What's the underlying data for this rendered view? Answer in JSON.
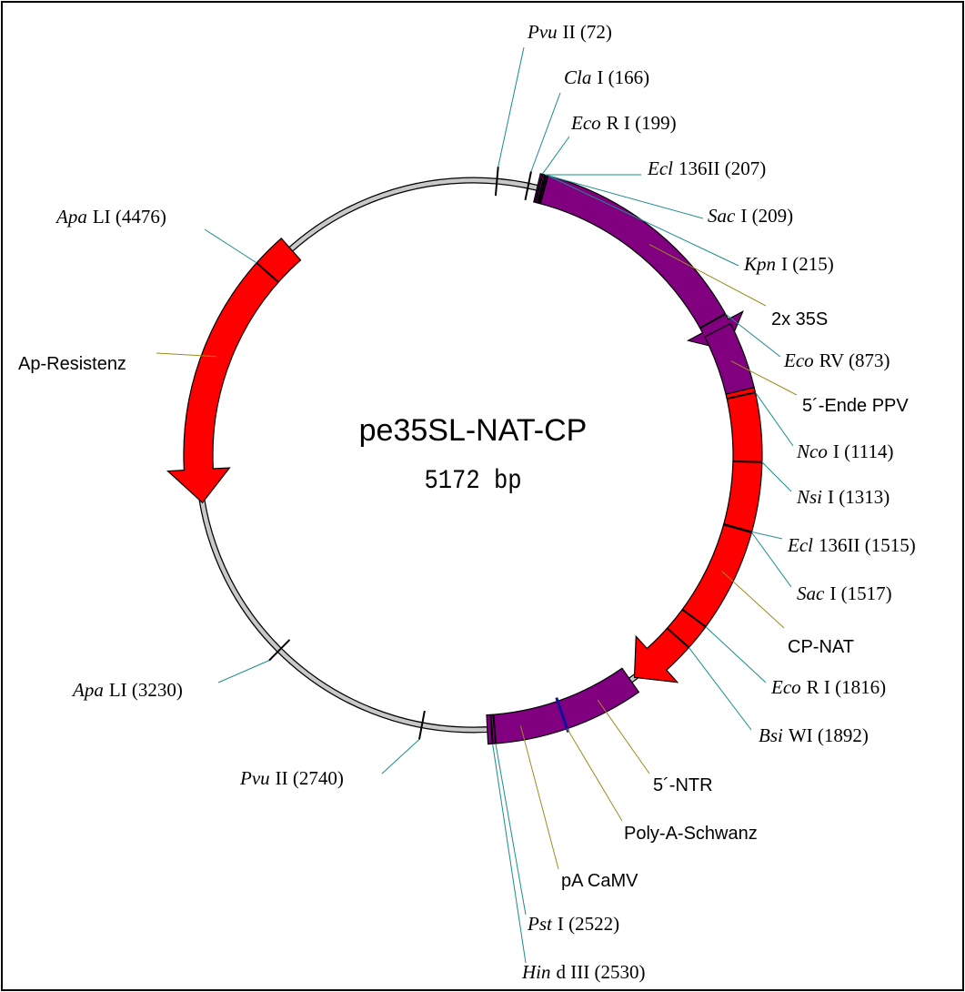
{
  "title": "pe35SL-NAT-CP",
  "size": "5172 bp",
  "sites": [
    {
      "italic": "Pvu",
      "text": "II (72)"
    },
    {
      "italic": "Cla",
      "text": "I (166)"
    },
    {
      "italic": "Eco",
      "text": "R I (199)"
    },
    {
      "italic": "Ecl",
      "text": "136II (207)"
    },
    {
      "italic": "Sac",
      "text": "I (209)"
    },
    {
      "italic": "Kpn",
      "text": "I (215)"
    },
    {
      "italic": "Eco",
      "text": "RV (873)"
    },
    {
      "italic": "Nco",
      "text": "I (1114)"
    },
    {
      "italic": "Nsi",
      "text": "I (1313)"
    },
    {
      "italic": "Ecl",
      "text": "136II (1515)"
    },
    {
      "italic": "Sac",
      "text": "I (1517)"
    },
    {
      "italic": "Eco",
      "text": "R I (1816)"
    },
    {
      "italic": "Bsi",
      "text": "WI (1892)"
    },
    {
      "italic": "Pst",
      "text": "I (2522)"
    },
    {
      "italic": "Hin",
      "text": "d III (2530)"
    },
    {
      "italic": "Pvu",
      "text": "II (2740)"
    },
    {
      "italic": "Apa",
      "text": "LI (3230)"
    },
    {
      "italic": "Apa",
      "text": "LI (4476)"
    }
  ],
  "features": [
    {
      "label": "2x 35S"
    },
    {
      "label": "5´-Ende PPV"
    },
    {
      "label": "CP-NAT"
    },
    {
      "label": "5´-NTR"
    },
    {
      "label": "Poly-A-Schwanz"
    },
    {
      "label": "pA CaMV"
    },
    {
      "label": "Ap-Resistenz"
    }
  ]
}
